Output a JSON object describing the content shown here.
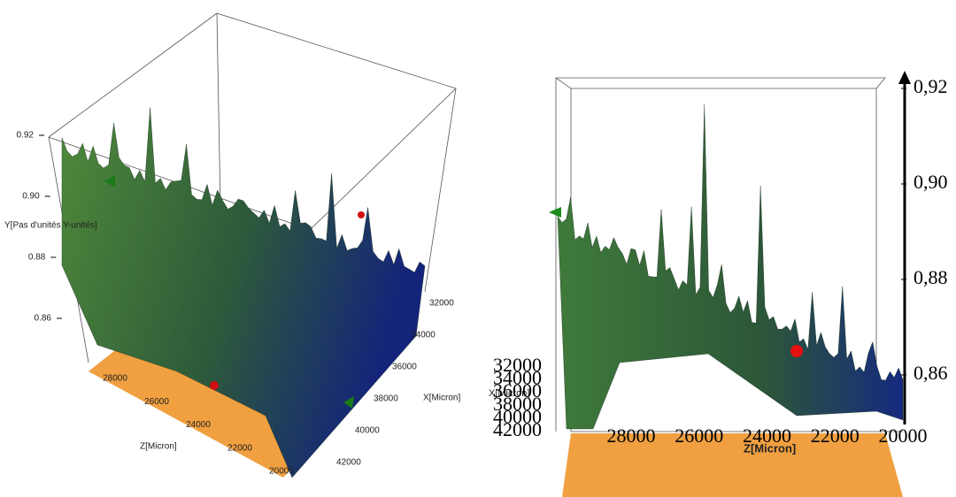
{
  "chart_data": [
    {
      "type": "surface3d",
      "ylabel": "Y[Pas d'unités Y-unités]",
      "xlabel": "X[Micron]",
      "zlabel": "Z[Micron]",
      "ylim": [
        0.86,
        0.92
      ],
      "yticks": [
        {
          "value": 0.92,
          "label": "0.92"
        },
        {
          "value": 0.9,
          "label": "0.90"
        },
        {
          "value": 0.88,
          "label": "0.88"
        },
        {
          "value": 0.86,
          "label": "0.86"
        }
      ],
      "xlim": [
        32000,
        42000
      ],
      "xticks": [
        32000,
        34000,
        36000,
        38000,
        40000,
        42000
      ],
      "zlim": [
        20000,
        28000
      ],
      "zticks": [
        28000,
        26000,
        24000,
        22000,
        20000
      ]
    },
    {
      "type": "surface3d",
      "xlabel": "X[Micron]",
      "zlabel": "Z[Micron]",
      "ylim": [
        0.86,
        0.92
      ],
      "yticks": [
        {
          "value": 0.92,
          "label": "0,92"
        },
        {
          "value": 0.9,
          "label": "0,90"
        },
        {
          "value": 0.88,
          "label": "0,88"
        },
        {
          "value": 0.86,
          "label": "0,86"
        }
      ],
      "xlim": [
        32000,
        42000
      ],
      "xticks": [
        32000,
        34000,
        36000,
        38000,
        40000,
        42000
      ],
      "zlim": [
        20000,
        28000
      ],
      "zticks": [
        28000,
        26000,
        24000,
        22000,
        20000
      ]
    }
  ]
}
